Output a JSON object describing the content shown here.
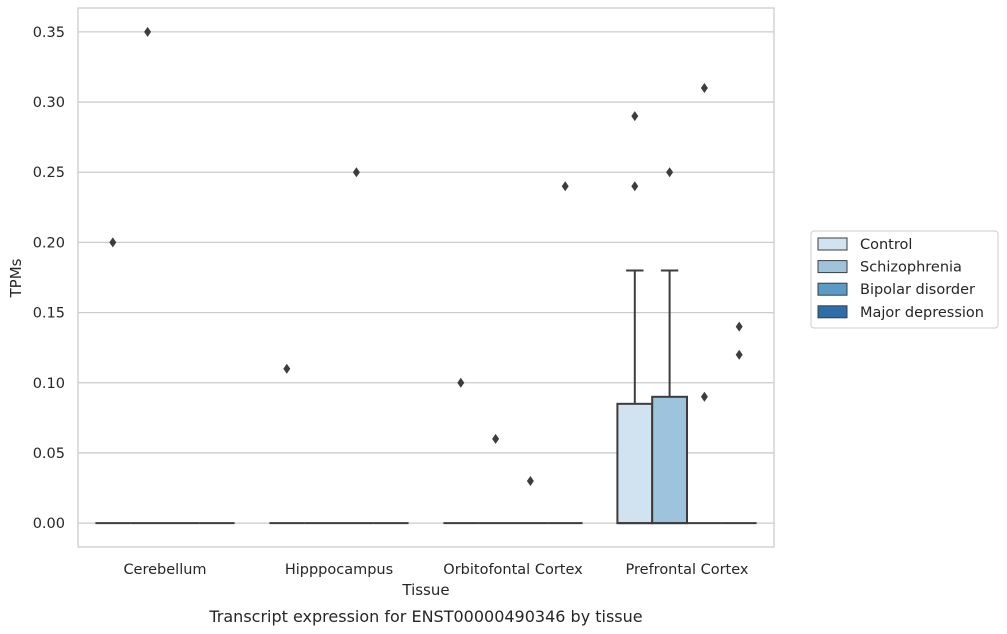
{
  "caption": "Transcript expression for ENST00000490346 by tissue",
  "chart_data": {
    "type": "box",
    "xlabel": "Tissue",
    "ylabel": "TPMs",
    "ylim": [
      -0.017,
      0.367
    ],
    "yticks": [
      "0.00",
      "0.05",
      "0.10",
      "0.15",
      "0.20",
      "0.25",
      "0.30",
      "0.35"
    ],
    "grid": "horizontal",
    "legend_position": "right",
    "categories": [
      "Cerebellum",
      "Hipppocampus",
      "Orbitofontal Cortex",
      "Prefrontal Cortex"
    ],
    "series": [
      {
        "name": "Control",
        "color": "#d1e2f0",
        "boxes": [
          {
            "q1": 0,
            "median": 0,
            "q3": 0,
            "whisker_low": 0,
            "whisker_high": 0,
            "outliers": [
              0.2
            ]
          },
          {
            "q1": 0,
            "median": 0,
            "q3": 0,
            "whisker_low": 0,
            "whisker_high": 0,
            "outliers": [
              0.11
            ]
          },
          {
            "q1": 0,
            "median": 0,
            "q3": 0,
            "whisker_low": 0,
            "whisker_high": 0,
            "outliers": [
              0.1
            ]
          },
          {
            "q1": 0,
            "median": 0,
            "q3": 0.085,
            "whisker_low": 0,
            "whisker_high": 0.18,
            "outliers": [
              0.24,
              0.29
            ]
          }
        ]
      },
      {
        "name": "Schizophrenia",
        "color": "#9ec4dd",
        "boxes": [
          {
            "q1": 0,
            "median": 0,
            "q3": 0,
            "whisker_low": 0,
            "whisker_high": 0,
            "outliers": [
              0.35
            ]
          },
          {
            "q1": 0,
            "median": 0,
            "q3": 0,
            "whisker_low": 0,
            "whisker_high": 0,
            "outliers": []
          },
          {
            "q1": 0,
            "median": 0,
            "q3": 0,
            "whisker_low": 0,
            "whisker_high": 0,
            "outliers": [
              0.06
            ]
          },
          {
            "q1": 0,
            "median": 0,
            "q3": 0.09,
            "whisker_low": 0,
            "whisker_high": 0.18,
            "outliers": [
              0.25
            ]
          }
        ]
      },
      {
        "name": "Bipolar disorder",
        "color": "#5b9bc8",
        "boxes": [
          {
            "q1": 0,
            "median": 0,
            "q3": 0,
            "whisker_low": 0,
            "whisker_high": 0,
            "outliers": []
          },
          {
            "q1": 0,
            "median": 0,
            "q3": 0,
            "whisker_low": 0,
            "whisker_high": 0,
            "outliers": [
              0.25
            ]
          },
          {
            "q1": 0,
            "median": 0,
            "q3": 0,
            "whisker_low": 0,
            "whisker_high": 0,
            "outliers": [
              0.03
            ]
          },
          {
            "q1": 0,
            "median": 0,
            "q3": 0,
            "whisker_low": 0,
            "whisker_high": 0,
            "outliers": [
              0.09,
              0.31
            ]
          }
        ]
      },
      {
        "name": "Major depression",
        "color": "#2d6ea9",
        "boxes": [
          {
            "q1": 0,
            "median": 0,
            "q3": 0,
            "whisker_low": 0,
            "whisker_high": 0,
            "outliers": []
          },
          {
            "q1": 0,
            "median": 0,
            "q3": 0,
            "whisker_low": 0,
            "whisker_high": 0,
            "outliers": []
          },
          {
            "q1": 0,
            "median": 0,
            "q3": 0,
            "whisker_low": 0,
            "whisker_high": 0,
            "outliers": [
              0.24
            ]
          },
          {
            "q1": 0,
            "median": 0,
            "q3": 0,
            "whisker_low": 0,
            "whisker_high": 0,
            "outliers": [
              0.12,
              0.14
            ]
          }
        ]
      }
    ]
  }
}
